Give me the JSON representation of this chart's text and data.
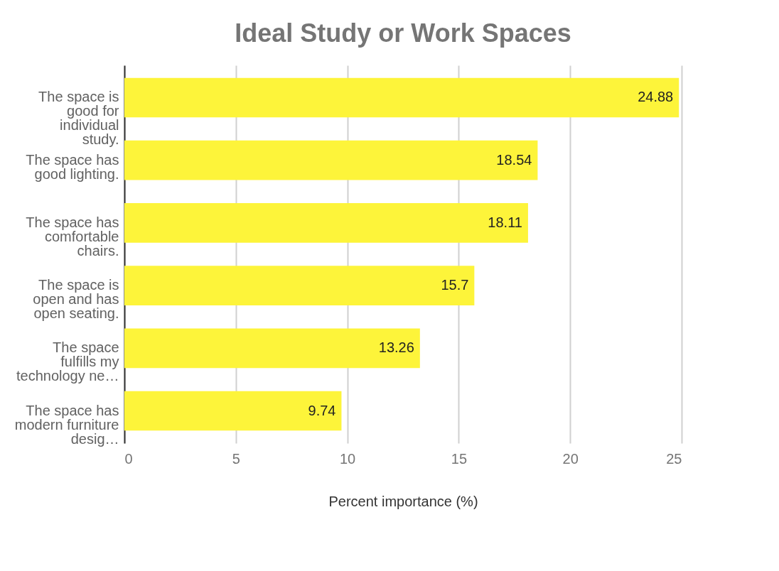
{
  "chart_data": {
    "type": "bar",
    "orientation": "horizontal",
    "title": "Ideal Study or Work Spaces",
    "xlabel": "Percent importance (%)",
    "categories": [
      "The space is good for individual study.",
      "The space has good lighting.",
      "The space has comfortable chairs.",
      "The space is open and has open seating.",
      "The space fulfills my technology ne…",
      "The space has modern furniture desig…"
    ],
    "values": [
      24.88,
      18.54,
      18.11,
      15.7,
      13.26,
      9.74
    ],
    "color": "#fdf43a",
    "xlim": [
      0,
      25
    ],
    "xticks": [
      0,
      5,
      10,
      15,
      20,
      25
    ],
    "grid": "x",
    "data_labels": true
  }
}
